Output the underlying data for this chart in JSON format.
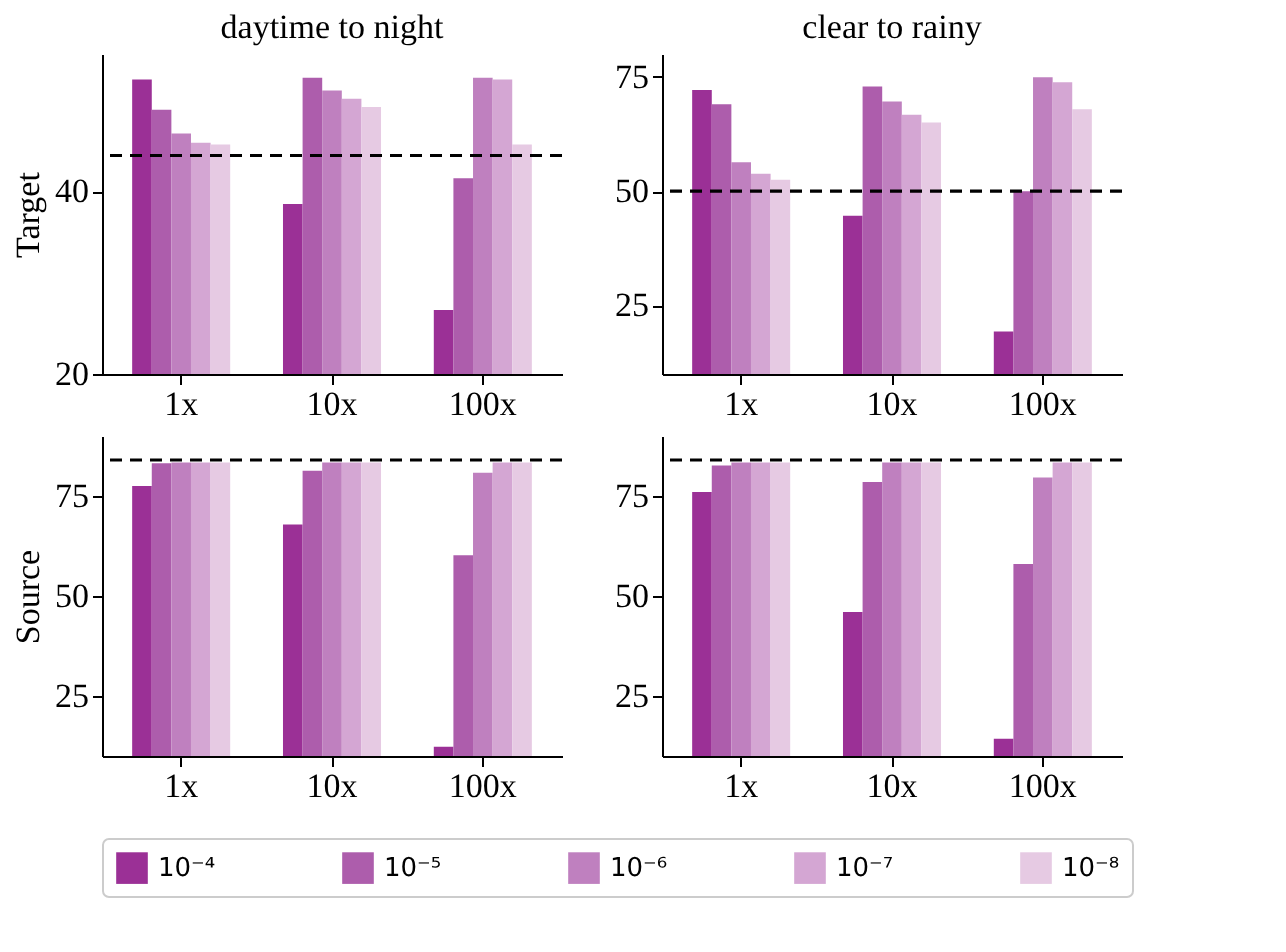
{
  "chart_data": [
    {
      "type": "bar",
      "title": "daytime to night",
      "ylabel": "Target",
      "categories": [
        "1x",
        "10x",
        "100x"
      ],
      "ylim": [
        20,
        55
      ],
      "yticks": [
        20,
        40
      ],
      "grid": false,
      "legend": "bottom",
      "ref_lines": [
        {
          "axis": "y",
          "value": 43.9,
          "color": "#000000",
          "line_style": "dashed"
        }
      ],
      "series": [
        {
          "name": "10⁻⁴",
          "color": "#9b3096",
          "values": [
            52.2,
            38.6,
            27.0
          ]
        },
        {
          "name": "10⁻⁵",
          "color": "#ad5dac",
          "values": [
            48.9,
            52.4,
            41.4
          ]
        },
        {
          "name": "10⁻⁶",
          "color": "#bf80bf",
          "values": [
            46.3,
            51.0,
            52.4
          ]
        },
        {
          "name": "10⁻⁷",
          "color": "#d4a6d3",
          "values": [
            45.3,
            50.1,
            52.2
          ]
        },
        {
          "name": "10⁻⁸",
          "color": "#e6cae3",
          "values": [
            45.1,
            49.2,
            45.1
          ]
        }
      ]
    },
    {
      "type": "bar",
      "title": "clear to rainy",
      "categories": [
        "1x",
        "10x",
        "100x"
      ],
      "ylim": [
        10,
        80
      ],
      "yticks": [
        25,
        50,
        75
      ],
      "grid": false,
      "legend": "bottom",
      "ref_lines": [
        {
          "axis": "y",
          "value": 50,
          "color": "#000000",
          "line_style": "dashed"
        }
      ],
      "series": [
        {
          "name": "10⁻⁴",
          "color": "#9b3096",
          "values": [
            72.1,
            44.6,
            19.3
          ]
        },
        {
          "name": "10⁻⁵",
          "color": "#ad5dac",
          "values": [
            69.0,
            72.9,
            50.0
          ]
        },
        {
          "name": "10⁻⁶",
          "color": "#bf80bf",
          "values": [
            56.3,
            69.6,
            74.9
          ]
        },
        {
          "name": "10⁻⁷",
          "color": "#d4a6d3",
          "values": [
            53.8,
            66.7,
            73.8
          ]
        },
        {
          "name": "10⁻⁸",
          "color": "#e6cae3",
          "values": [
            52.5,
            65.0,
            67.9
          ]
        }
      ]
    },
    {
      "type": "bar",
      "ylabel": "Source",
      "categories": [
        "1x",
        "10x",
        "100x"
      ],
      "ylim": [
        10,
        90
      ],
      "yticks": [
        25,
        50,
        75
      ],
      "grid": false,
      "legend": "bottom",
      "ref_lines": [
        {
          "axis": "y",
          "value": 84,
          "color": "#000000",
          "line_style": "dashed"
        }
      ],
      "series": [
        {
          "name": "10⁻⁴",
          "color": "#9b3096",
          "values": [
            77.5,
            67.9,
            12.3
          ]
        },
        {
          "name": "10⁻⁵",
          "color": "#ad5dac",
          "values": [
            83.2,
            81.3,
            60.2
          ]
        },
        {
          "name": "10⁻⁶",
          "color": "#bf80bf",
          "values": [
            83.4,
            83.4,
            80.8
          ]
        },
        {
          "name": "10⁻⁷",
          "color": "#d4a6d3",
          "values": [
            83.4,
            83.4,
            83.4
          ]
        },
        {
          "name": "10⁻⁸",
          "color": "#e6cae3",
          "values": [
            83.4,
            83.4,
            83.4
          ]
        }
      ]
    },
    {
      "type": "bar",
      "categories": [
        "1x",
        "10x",
        "100x"
      ],
      "ylim": [
        10,
        90
      ],
      "yticks": [
        25,
        50,
        75
      ],
      "grid": false,
      "legend": "bottom",
      "ref_lines": [
        {
          "axis": "y",
          "value": 84,
          "color": "#000000",
          "line_style": "dashed"
        }
      ],
      "series": [
        {
          "name": "10⁻⁴",
          "color": "#9b3096",
          "values": [
            76.0,
            46.0,
            14.3
          ]
        },
        {
          "name": "10⁻⁵",
          "color": "#ad5dac",
          "values": [
            82.6,
            78.5,
            58.0
          ]
        },
        {
          "name": "10⁻⁶",
          "color": "#bf80bf",
          "values": [
            83.4,
            83.4,
            79.6
          ]
        },
        {
          "name": "10⁻⁷",
          "color": "#d4a6d3",
          "values": [
            83.4,
            83.4,
            83.4
          ]
        },
        {
          "name": "10⁻⁸",
          "color": "#e6cae3",
          "values": [
            83.4,
            83.4,
            83.4
          ]
        }
      ]
    }
  ]
}
